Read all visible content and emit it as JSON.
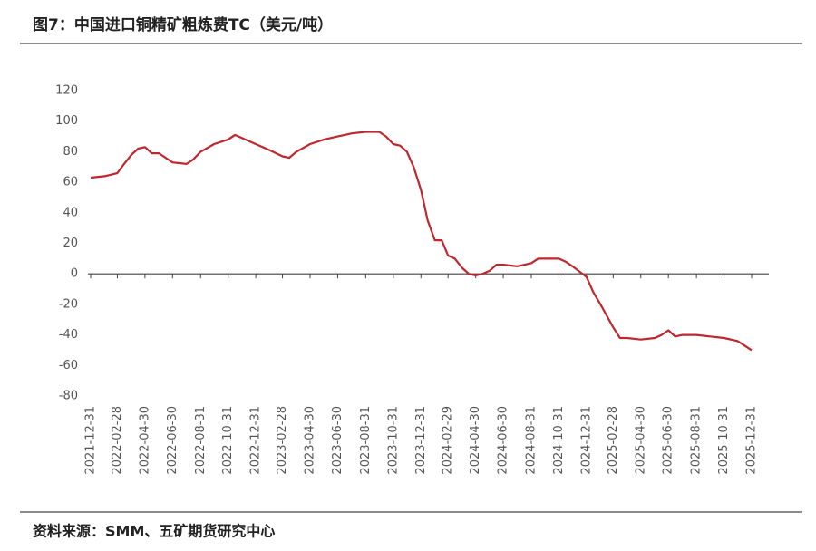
{
  "chart_data": {
    "type": "line",
    "title": "图7：中国进口铜精矿粗炼费TC（美元/吨）",
    "source": "资料来源：SMM、五矿期货研究中心",
    "x": [
      "2021-12-31",
      "2022-01-31",
      "2022-02-28",
      "2022-03-15",
      "2022-03-31",
      "2022-04-15",
      "2022-04-30",
      "2022-05-15",
      "2022-05-31",
      "2022-06-30",
      "2022-07-31",
      "2022-08-15",
      "2022-08-31",
      "2022-09-30",
      "2022-10-31",
      "2022-11-15",
      "2022-11-30",
      "2022-12-31",
      "2023-01-31",
      "2023-02-28",
      "2023-03-15",
      "2023-03-31",
      "2023-04-30",
      "2023-05-31",
      "2023-06-30",
      "2023-07-31",
      "2023-08-31",
      "2023-09-30",
      "2023-10-15",
      "2023-10-31",
      "2023-11-15",
      "2023-11-30",
      "2023-12-15",
      "2023-12-31",
      "2024-01-15",
      "2024-01-31",
      "2024-02-15",
      "2024-02-29",
      "2024-03-15",
      "2024-03-31",
      "2024-04-15",
      "2024-04-30",
      "2024-05-15",
      "2024-05-31",
      "2024-06-15",
      "2024-06-30",
      "2024-07-31",
      "2024-08-31",
      "2024-09-15",
      "2024-09-30",
      "2024-10-31",
      "2024-11-15",
      "2024-11-30",
      "2024-12-31",
      "2025-01-15",
      "2025-01-31",
      "2025-02-15",
      "2025-02-28",
      "2025-03-15",
      "2025-03-31",
      "2025-04-30",
      "2025-05-31",
      "2025-06-15",
      "2025-06-30",
      "2025-07-15",
      "2025-07-31",
      "2025-08-31",
      "2025-09-30",
      "2025-10-31",
      "2025-11-30",
      "2025-12-31"
    ],
    "series": [
      {
        "name": "TC",
        "color": "#c0262d",
        "values": [
          63,
          64,
          66,
          72,
          78,
          82,
          83,
          79,
          79,
          73,
          72,
          75,
          80,
          85,
          88,
          91,
          89,
          85,
          81,
          77,
          76,
          80,
          85,
          88,
          90,
          92,
          93,
          93,
          90,
          85,
          84,
          80,
          70,
          55,
          35,
          22,
          22,
          12,
          10,
          4,
          0,
          -1,
          0,
          2,
          6,
          6,
          5,
          7,
          10,
          10,
          10,
          8,
          5,
          -2,
          -12,
          -20,
          -28,
          -35,
          -42,
          -42,
          -43,
          -42,
          -40,
          -37,
          -41,
          -40,
          -40,
          -41,
          -42,
          -44,
          -50
        ]
      }
    ],
    "xlim": [
      "2021-12-31",
      "2025-12-31"
    ],
    "xticks": [
      "2021-12-31",
      "2022-02-28",
      "2022-04-30",
      "2022-06-30",
      "2022-08-31",
      "2022-10-31",
      "2022-12-31",
      "2023-02-28",
      "2023-04-30",
      "2023-06-30",
      "2023-08-31",
      "2023-10-31",
      "2023-12-31",
      "2024-02-29",
      "2024-04-30",
      "2024-06-30",
      "2024-08-31",
      "2024-10-31",
      "2024-12-31",
      "2025-02-28",
      "2025-04-30",
      "2025-06-30",
      "2025-08-31",
      "2025-10-31",
      "2025-12-31"
    ],
    "ylim": [
      -80,
      120
    ],
    "yticks": [
      -80,
      -60,
      -40,
      -20,
      0,
      20,
      40,
      60,
      80,
      100,
      120
    ],
    "grid": false
  }
}
